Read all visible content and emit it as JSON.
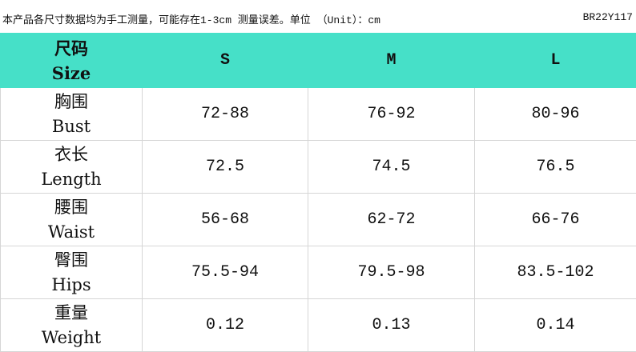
{
  "note": "本产品各尺寸数据均为手工测量，可能存在1-3cm 测量误差。单位 （Unit）：cm",
  "code": "BR22Y117",
  "header": {
    "cn": "尺码",
    "en": "Size",
    "sizes": [
      "S",
      "M",
      "L"
    ]
  },
  "rows": [
    {
      "cn": "胸围",
      "en": "Bust",
      "values": [
        "72-88",
        "76-92",
        "80-96"
      ]
    },
    {
      "cn": "衣长",
      "en": "Length",
      "values": [
        "72.5",
        "74.5",
        "76.5"
      ]
    },
    {
      "cn": "腰围",
      "en": "Waist",
      "values": [
        "56-68",
        "62-72",
        "66-76"
      ]
    },
    {
      "cn": "臀围",
      "en": "Hips",
      "values": [
        "75.5-94",
        "79.5-98",
        "83.5-102"
      ]
    },
    {
      "cn": "重量",
      "en": "Weight",
      "values": [
        "0.12",
        "0.13",
        "0.14"
      ]
    }
  ],
  "colors": {
    "header_bg": "#46e0c8"
  }
}
